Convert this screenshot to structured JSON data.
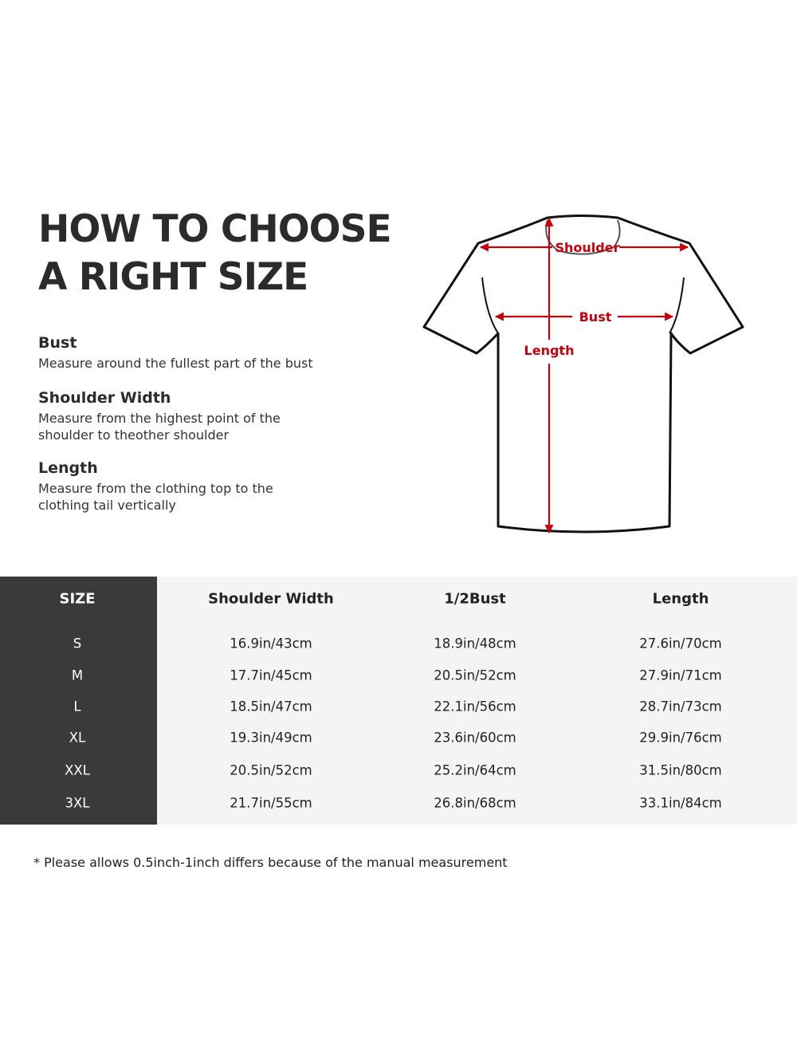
{
  "title_lines": [
    "HOW TO CHOOSE",
    "A RIGHT SIZE"
  ],
  "sections": [
    {
      "heading": "Bust",
      "text": "Measure around the fullest part of the bust"
    },
    {
      "heading": "Shoulder Width",
      "text": "Measure from the highest point of the\nshoulder to theother shoulder"
    },
    {
      "heading": "Length",
      "text": "Measure from the clothing top to the\nclothing tail vertically"
    }
  ],
  "diagram": {
    "labels": {
      "shoulder": "Shoulder",
      "bust": "Bust",
      "length": "Length"
    },
    "accent_color": "#c8000a"
  },
  "table": {
    "headers": [
      "SIZE",
      "Shoulder Width",
      "1/2Bust",
      "Length"
    ],
    "rows": [
      [
        "S",
        "16.9in/43cm",
        "18.9in/48cm",
        "27.6in/70cm"
      ],
      [
        "M",
        "17.7in/45cm",
        "20.5in/52cm",
        "27.9in/71cm"
      ],
      [
        "L",
        "18.5in/47cm",
        "22.1in/56cm",
        "28.7in/73cm"
      ],
      [
        "XL",
        "19.3in/49cm",
        "23.6in/60cm",
        "29.9in/76cm"
      ],
      [
        "XXL",
        "20.5in/52cm",
        "25.2in/64cm",
        "31.5in/80cm"
      ],
      [
        "3XL",
        "21.7in/55cm",
        "26.8in/68cm",
        "33.1in/84cm"
      ]
    ]
  },
  "note": "* Please allows 0.5inch-1inch differs because of the  manual measurement"
}
